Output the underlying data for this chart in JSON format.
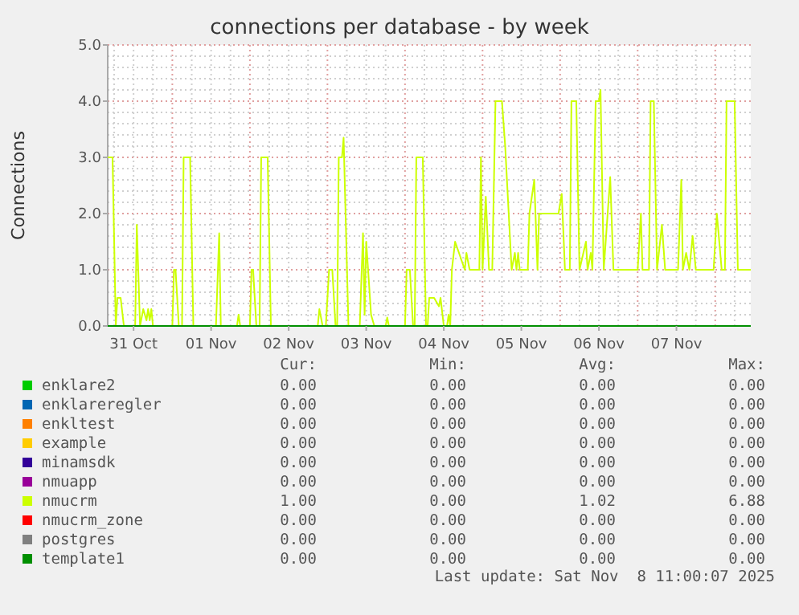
{
  "chart_data": {
    "type": "line",
    "title": "connections per database - by week",
    "ylabel": "Connections",
    "xlim": [
      "2025-10-31T04:00",
      "2025-11-08T11:00"
    ],
    "ylim": [
      0,
      5
    ],
    "xticks": [
      {
        "value": "2025-10-31T12:00",
        "label": "31 Oct"
      },
      {
        "value": "2025-11-01T12:00",
        "label": "01 Nov"
      },
      {
        "value": "2025-11-02T12:00",
        "label": "02 Nov"
      },
      {
        "value": "2025-11-03T12:00",
        "label": "03 Nov"
      },
      {
        "value": "2025-11-04T12:00",
        "label": "04 Nov"
      },
      {
        "value": "2025-11-05T12:00",
        "label": "05 Nov"
      },
      {
        "value": "2025-11-06T12:00",
        "label": "06 Nov"
      },
      {
        "value": "2025-11-07T12:00",
        "label": "07 Nov"
      }
    ],
    "yticks": [
      {
        "value": 0,
        "label": "0.0"
      },
      {
        "value": 1,
        "label": "1.0"
      },
      {
        "value": 2,
        "label": "2.0"
      },
      {
        "value": 3,
        "label": "3.0"
      },
      {
        "value": 4,
        "label": "4.0"
      },
      {
        "value": 5,
        "label": "5.0"
      }
    ],
    "grid": true,
    "legend": "bottom",
    "marker": "none",
    "line_style": "solid",
    "series": [
      {
        "name": "enklare2",
        "color": "#00cc00"
      },
      {
        "name": "enklareregler",
        "color": "#0066b3"
      },
      {
        "name": "enkltest",
        "color": "#ff8000"
      },
      {
        "name": "example",
        "color": "#ffcc00"
      },
      {
        "name": "minamsdk",
        "color": "#330099"
      },
      {
        "name": "nmuapp",
        "color": "#990099"
      },
      {
        "name": "nmucrm",
        "color": "#ccff00",
        "x": [
          "2025-10-31T04:00",
          "2025-10-31T05:30",
          "2025-10-31T06:30",
          "2025-10-31T07:00",
          "2025-10-31T08:00",
          "2025-10-31T09:00",
          "2025-10-31T12:30",
          "2025-10-31T13:00",
          "2025-10-31T14:00",
          "2025-10-31T15:00",
          "2025-10-31T16:00",
          "2025-10-31T16:30",
          "2025-10-31T17:00",
          "2025-10-31T17:30",
          "2025-10-31T18:00",
          "2025-11-01T00:00",
          "2025-11-01T00:30",
          "2025-11-01T01:00",
          "2025-11-01T02:00",
          "2025-11-01T03:00",
          "2025-11-01T03:30",
          "2025-11-01T05:30",
          "2025-11-01T06:30",
          "2025-11-01T13:30",
          "2025-11-01T14:30",
          "2025-11-01T15:00",
          "2025-11-01T20:00",
          "2025-11-01T20:30",
          "2025-11-01T21:00",
          "2025-11-02T00:00",
          "2025-11-02T00:30",
          "2025-11-02T01:00",
          "2025-11-02T02:00",
          "2025-11-02T03:00",
          "2025-11-02T03:30",
          "2025-11-02T05:30",
          "2025-11-02T06:30",
          "2025-11-02T21:00",
          "2025-11-02T21:30",
          "2025-11-02T22:30",
          "2025-11-02T23:30",
          "2025-11-03T00:30",
          "2025-11-03T01:30",
          "2025-11-03T02:30",
          "2025-11-03T03:00",
          "2025-11-03T03:30",
          "2025-11-03T04:30",
          "2025-11-03T05:00",
          "2025-11-03T06:30",
          "2025-11-03T10:00",
          "2025-11-03T11:00",
          "2025-11-03T11:30",
          "2025-11-03T12:00",
          "2025-11-03T13:30",
          "2025-11-03T14:30",
          "2025-11-03T18:00",
          "2025-11-03T18:30",
          "2025-11-03T19:00",
          "2025-11-04T00:00",
          "2025-11-04T00:30",
          "2025-11-04T01:30",
          "2025-11-04T02:30",
          "2025-11-04T03:00",
          "2025-11-04T03:30",
          "2025-11-04T05:30",
          "2025-11-04T06:30",
          "2025-11-04T07:00",
          "2025-11-04T07:30",
          "2025-11-04T09:00",
          "2025-11-04T10:30",
          "2025-11-04T11:00",
          "2025-11-04T12:00",
          "2025-11-04T13:00",
          "2025-11-04T13:30",
          "2025-11-04T14:00",
          "2025-11-04T14:30",
          "2025-11-04T15:30",
          "2025-11-04T18:30",
          "2025-11-04T19:00",
          "2025-11-04T20:00",
          "2025-11-04T23:00",
          "2025-11-04T23:30",
          "2025-11-05T00:00",
          "2025-11-05T01:00",
          "2025-11-05T02:00",
          "2025-11-05T03:00",
          "2025-11-05T04:00",
          "2025-11-05T06:00",
          "2025-11-05T07:00",
          "2025-11-05T09:00",
          "2025-11-05T10:00",
          "2025-11-05T10:30",
          "2025-11-05T11:00",
          "2025-11-05T11:30",
          "2025-11-05T14:00",
          "2025-11-05T14:30",
          "2025-11-05T16:00",
          "2025-11-05T17:00",
          "2025-11-05T17:30",
          "2025-11-05T23:30",
          "2025-11-06T00:30",
          "2025-11-06T01:30",
          "2025-11-06T03:00",
          "2025-11-06T03:30",
          "2025-11-06T05:00",
          "2025-11-06T06:00",
          "2025-11-06T08:00",
          "2025-11-06T08:30",
          "2025-11-06T09:30",
          "2025-11-06T10:00",
          "2025-11-06T11:00",
          "2025-11-06T12:00",
          "2025-11-06T12:30",
          "2025-11-06T13:30",
          "2025-11-06T15:30",
          "2025-11-06T16:30",
          "2025-11-07T00:00",
          "2025-11-07T01:00",
          "2025-11-07T01:30",
          "2025-11-07T03:30",
          "2025-11-07T04:00",
          "2025-11-07T05:00",
          "2025-11-07T06:00",
          "2025-11-07T07:30",
          "2025-11-07T08:30",
          "2025-11-07T12:30",
          "2025-11-07T13:30",
          "2025-11-07T14:00",
          "2025-11-07T15:00",
          "2025-11-07T16:00",
          "2025-11-07T17:00",
          "2025-11-07T18:00",
          "2025-11-07T23:30",
          "2025-11-08T00:30",
          "2025-11-08T02:00",
          "2025-11-08T03:00",
          "2025-11-08T03:30",
          "2025-11-08T06:00",
          "2025-11-08T07:00",
          "2025-11-08T11:00"
        ],
        "values": [
          3,
          3,
          0,
          0.5,
          0.5,
          0,
          0,
          1.8,
          0,
          0.3,
          0.1,
          0.3,
          0.1,
          0.3,
          0,
          0,
          1,
          1,
          0,
          0,
          3,
          3,
          0,
          0,
          1.65,
          0,
          0,
          0.2,
          0,
          0,
          1,
          1,
          0,
          0,
          3,
          3,
          0,
          0,
          0.3,
          0,
          0,
          1,
          1,
          0,
          0,
          3,
          3,
          3.35,
          0,
          0,
          1.65,
          0.2,
          1.5,
          0.2,
          0,
          0,
          0.15,
          0,
          0,
          1,
          1,
          0,
          0,
          3,
          3,
          0,
          0,
          0.5,
          0.5,
          0.35,
          0.5,
          0,
          0,
          0.2,
          0,
          1,
          1.5,
          1,
          1.3,
          1,
          1,
          3,
          1,
          2.3,
          1,
          1,
          4,
          4,
          3.2,
          1,
          1.3,
          1,
          1.3,
          1,
          1,
          2,
          2.6,
          1,
          2,
          2,
          2.35,
          1,
          1,
          4,
          4,
          1,
          1.5,
          1,
          1.3,
          1,
          4,
          4,
          4.2,
          1,
          2.65,
          1,
          1,
          2,
          1,
          1,
          4,
          4,
          1,
          1.8,
          1,
          1,
          2.6,
          1,
          1.3,
          1,
          1.6,
          1,
          1,
          2,
          1,
          1,
          4,
          4,
          1,
          1
        ]
      },
      {
        "name": "nmucrm_zone",
        "color": "#ff0000"
      },
      {
        "name": "postgres",
        "color": "#808080"
      },
      {
        "name": "template1",
        "color": "#008f00",
        "x": [
          "2025-10-31T04:00",
          "2025-11-08T11:00"
        ],
        "values": [
          0,
          0
        ]
      }
    ],
    "annotations": [
      "Cur:",
      "Min:",
      "Avg:",
      "Max:",
      "0.00",
      "0.00",
      "0.00",
      "0.00",
      "0.00",
      "0.00",
      "0.00",
      "0.00",
      "0.00",
      "0.00",
      "0.00",
      "0.00",
      "0.00",
      "0.00",
      "0.00",
      "0.00",
      "0.00",
      "0.00",
      "0.00",
      "0.00",
      "0.00",
      "0.00",
      "0.00",
      "0.00",
      "1.00",
      "0.00",
      "1.02",
      "6.88",
      "0.00",
      "0.00",
      "0.00",
      "0.00",
      "0.00",
      "0.00",
      "0.00",
      "0.00",
      "0.00",
      "0.00",
      "0.00",
      "0.00",
      "Last update: Sat Nov  8 11:00:07 2025"
    ]
  }
}
